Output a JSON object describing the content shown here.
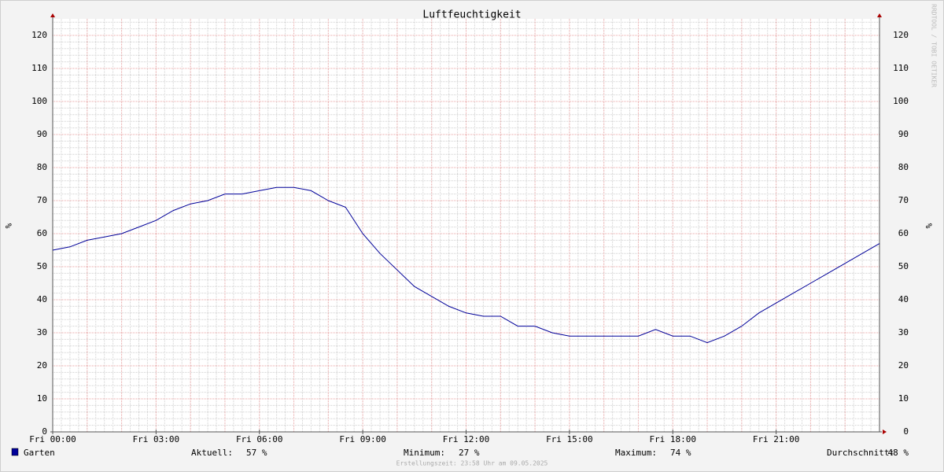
{
  "chart_data": {
    "type": "line",
    "title": "Luftfeuchtigkeit",
    "y_label": "%",
    "watermark": "RRDTOOL / TOBI OETIKER",
    "x": [
      0,
      0.5,
      1,
      1.5,
      2,
      2.5,
      3,
      3.5,
      4,
      4.5,
      5,
      5.5,
      6,
      6.5,
      7,
      7.5,
      8,
      8.5,
      9,
      9.5,
      10,
      10.5,
      11,
      11.5,
      12,
      12.5,
      13,
      13.5,
      14,
      14.5,
      15,
      15.5,
      16,
      16.5,
      17,
      17.5,
      18,
      18.5,
      19,
      19.5,
      20,
      20.5,
      21,
      21.5,
      22,
      22.5,
      23,
      23.5,
      24
    ],
    "series": [
      {
        "name": "Garten",
        "color": "#000099",
        "values": [
          55,
          56,
          58,
          59,
          60,
          62,
          64,
          67,
          69,
          70,
          72,
          72,
          73,
          74,
          74,
          73,
          70,
          68,
          60,
          54,
          49,
          44,
          41,
          38,
          36,
          35,
          35,
          32,
          32,
          30,
          29,
          29,
          29,
          29,
          29,
          31,
          29,
          29,
          27,
          29,
          32,
          36,
          39,
          42,
          45,
          48,
          51,
          54,
          57
        ]
      }
    ],
    "xlim": [
      0,
      24
    ],
    "xticks": [
      {
        "value": 0,
        "label": "Fri 00:00"
      },
      {
        "value": 3,
        "label": "Fri 03:00"
      },
      {
        "value": 6,
        "label": "Fri 06:00"
      },
      {
        "value": 9,
        "label": "Fri 09:00"
      },
      {
        "value": 12,
        "label": "Fri 12:00"
      },
      {
        "value": 15,
        "label": "Fri 15:00"
      },
      {
        "value": 18,
        "label": "Fri 18:00"
      },
      {
        "value": 21,
        "label": "Fri 21:00"
      }
    ],
    "ylim": [
      0,
      125
    ],
    "yticks": [
      0,
      10,
      20,
      30,
      40,
      50,
      60,
      70,
      80,
      90,
      100,
      110,
      120
    ],
    "grid": true,
    "stats": [
      {
        "label": "Aktuell:",
        "value": "57 %"
      },
      {
        "label": "Minimum:",
        "value": "27 %"
      },
      {
        "label": "Maximum:",
        "value": "74 %"
      },
      {
        "label": "Durchschnitt:",
        "value": "48 %"
      }
    ],
    "footer": "Erstellungszeit: 23:58 Uhr am 09.05.2025"
  }
}
